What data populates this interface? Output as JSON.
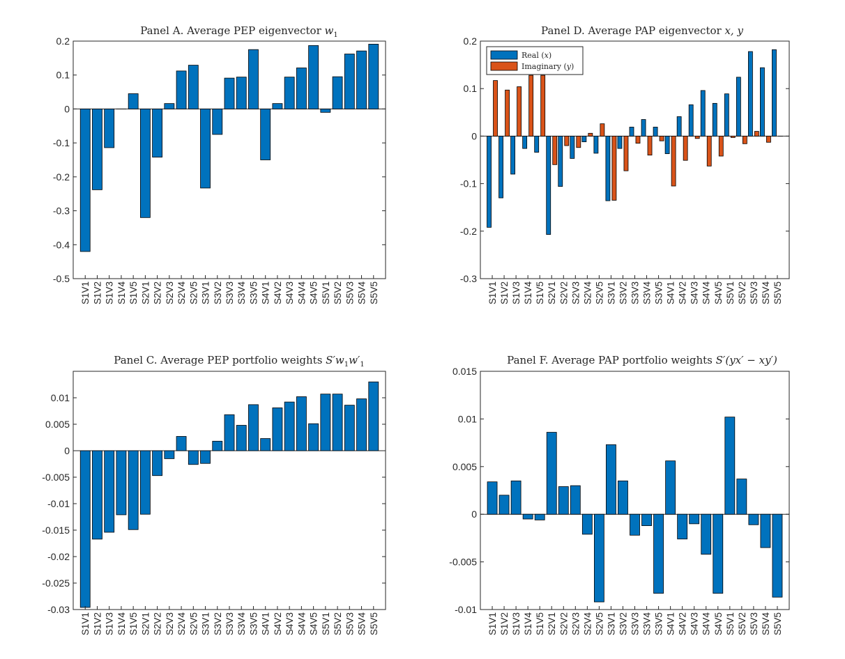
{
  "colors": {
    "primary": "#0072BD",
    "secondary": "#D95319",
    "axis": "#262626"
  },
  "chart_data": [
    {
      "type": "bar",
      "title": "Panel A. Average PEP eigenvector w",
      "title_subscript": "1",
      "categories": [
        "S1V1",
        "S1V2",
        "S1V3",
        "S1V4",
        "S1V5",
        "S2V1",
        "S2V2",
        "S2V3",
        "S2V4",
        "S2V5",
        "S3V1",
        "S3V2",
        "S3V3",
        "S3V4",
        "S3V5",
        "S4V1",
        "S4V2",
        "S4V3",
        "S4V4",
        "S4V5",
        "S5V1",
        "S5V2",
        "S5V3",
        "S5V4",
        "S5V5"
      ],
      "series": [
        {
          "values": [
            -0.42,
            -0.238,
            -0.114,
            0,
            0.045,
            -0.32,
            -0.142,
            0.016,
            0.112,
            0.129,
            -0.233,
            -0.075,
            0.091,
            0.094,
            0.175,
            -0.15,
            0.016,
            0.094,
            0.121,
            0.187,
            -0.01,
            0.095,
            0.162,
            0.171,
            0.191
          ]
        }
      ],
      "ylim": [
        -0.5,
        0.2
      ],
      "yticks": [
        "0.2",
        "0.1",
        "0",
        "-0.1",
        "-0.2",
        "-0.3",
        "-0.4",
        "-0.5"
      ],
      "grid": false
    },
    {
      "type": "bar",
      "title": "Panel D. Average PAP eigenvector x, y",
      "categories": [
        "S1V1",
        "S1V2",
        "S1V3",
        "S1V4",
        "S1V5",
        "S2V1",
        "S2V2",
        "S2V3",
        "S2V4",
        "S2V5",
        "S3V1",
        "S3V2",
        "S3V3",
        "S3V4",
        "S3V5",
        "S4V1",
        "S4V2",
        "S4V3",
        "S4V4",
        "S4V5",
        "S5V1",
        "S5V2",
        "S5V3",
        "S5V4",
        "S5V5"
      ],
      "series": [
        {
          "name": "Real (x)",
          "values": [
            -0.192,
            -0.13,
            -0.08,
            -0.026,
            -0.034,
            -0.207,
            -0.106,
            -0.047,
            -0.012,
            -0.036,
            -0.136,
            -0.026,
            0.019,
            0.035,
            0.019,
            -0.037,
            0.041,
            0.066,
            0.096,
            0.069,
            0.089,
            0.124,
            0.178,
            0.144,
            0.182
          ]
        },
        {
          "name": "Imaginary (y)",
          "values": [
            0.117,
            0.097,
            0.104,
            0.128,
            0.128,
            -0.06,
            -0.02,
            -0.024,
            0.006,
            0.026,
            -0.135,
            -0.073,
            -0.015,
            -0.04,
            -0.01,
            -0.105,
            -0.051,
            -0.005,
            -0.063,
            -0.042,
            -0.003,
            -0.016,
            0.01,
            -0.013,
            0
          ]
        }
      ],
      "legend_location": "top-left",
      "ylim": [
        -0.3,
        0.2
      ],
      "yticks": [
        "0.2",
        "0.1",
        "0",
        "-0.1",
        "-0.2",
        "-0.3"
      ],
      "grid": false
    },
    {
      "type": "bar",
      "title": "Panel C. Average PEP portfolio weights S′w",
      "title_parts": [
        "1",
        "w′",
        "1"
      ],
      "categories": [
        "S1V1",
        "S1V2",
        "S1V3",
        "S1V4",
        "S1V5",
        "S2V1",
        "S2V2",
        "S2V3",
        "S2V4",
        "S2V5",
        "S3V1",
        "S3V2",
        "S3V3",
        "S3V4",
        "S3V5",
        "S4V1",
        "S4V2",
        "S4V3",
        "S4V4",
        "S4V5",
        "S5V1",
        "S5V2",
        "S5V3",
        "S5V4",
        "S5V5"
      ],
      "series": [
        {
          "values": [
            -0.0296,
            -0.0167,
            -0.0154,
            -0.0121,
            -0.0149,
            -0.012,
            -0.0047,
            -0.0015,
            0.0027,
            -0.0026,
            -0.0024,
            0.0018,
            0.0068,
            0.0048,
            0.0087,
            0.0023,
            0.0081,
            0.0092,
            0.0102,
            0.0051,
            0.0107,
            0.0107,
            0.0086,
            0.0098,
            0.013
          ]
        }
      ],
      "ylim": [
        -0.03,
        0.015
      ],
      "yticks": [
        "0.01",
        "0.005",
        "0",
        "-0.005",
        "-0.01",
        "-0.015",
        "-0.02",
        "-0.025",
        "-0.03"
      ],
      "grid": false
    },
    {
      "type": "bar",
      "title": "Panel F. Average PAP portfolio weights S′(yx′ − xy′)",
      "categories": [
        "S1V1",
        "S1V2",
        "S1V3",
        "S1V4",
        "S1V5",
        "S2V1",
        "S2V2",
        "S2V3",
        "S2V4",
        "S2V5",
        "S3V1",
        "S3V2",
        "S3V3",
        "S3V4",
        "S3V5",
        "S4V1",
        "S4V2",
        "S4V3",
        "S4V4",
        "S4V5",
        "S5V1",
        "S5V2",
        "S5V3",
        "S5V4",
        "S5V5"
      ],
      "series": [
        {
          "values": [
            0.0034,
            0.002,
            0.0035,
            -0.0005,
            -0.0006,
            0.0086,
            0.0029,
            0.003,
            -0.0021,
            -0.0092,
            0.0073,
            0.0035,
            -0.0022,
            -0.0012,
            -0.0083,
            0.0056,
            -0.0026,
            -0.001,
            -0.0042,
            -0.0083,
            0.0102,
            0.0037,
            -0.0011,
            -0.0035,
            -0.0087
          ]
        }
      ],
      "ylim": [
        -0.01,
        0.015
      ],
      "yticks": [
        "0.015",
        "0.01",
        "0.005",
        "0",
        "-0.005",
        "-0.01"
      ],
      "grid": false
    }
  ]
}
